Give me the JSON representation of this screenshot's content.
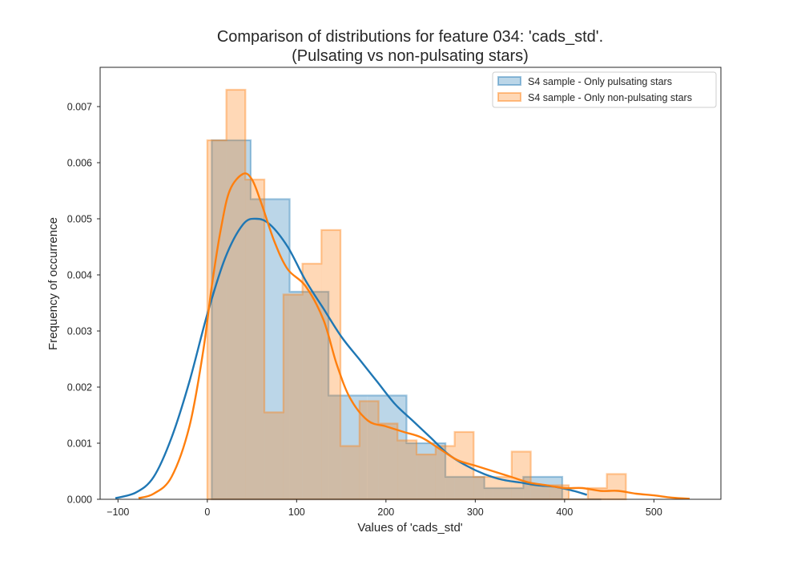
{
  "chart_data": {
    "type": "histogram",
    "title": "Comparison of distributions for feature 034: 'cads_std'.",
    "subtitle": "(Pulsating vs non-pulsating stars)",
    "xlabel": "Values of 'cads_std'",
    "ylabel": "Frequency of occurrence",
    "xlim": [
      -120,
      575
    ],
    "ylim": [
      0,
      0.0077
    ],
    "xticks": [
      -100,
      0,
      100,
      200,
      300,
      400,
      500
    ],
    "xtick_labels": [
      "−100",
      "0",
      "100",
      "200",
      "300",
      "400",
      "500"
    ],
    "yticks": [
      0,
      0.001,
      0.002,
      0.003,
      0.004,
      0.005,
      0.006,
      0.007
    ],
    "ytick_labels": [
      "0.000",
      "0.001",
      "0.002",
      "0.003",
      "0.004",
      "0.005",
      "0.006",
      "0.007"
    ],
    "grid": false,
    "legend_position": "top-right",
    "series": [
      {
        "name": "S4 sample - Only pulsating stars",
        "color": "#1f77b4",
        "bin_edges": [
          5,
          48.6,
          92.2,
          135.8,
          179.4,
          223,
          266.6,
          310.2,
          353.8,
          397.4,
          441
        ],
        "density": [
          0.0064,
          0.00535,
          0.0037,
          0.00185,
          0.00185,
          0.001,
          0.0004,
          0.0002,
          0.0004,
          0.0
        ],
        "kde_x": [
          -103,
          -80,
          -60,
          -40,
          -20,
          0,
          20,
          40,
          55,
          70,
          90,
          110,
          130,
          150,
          170,
          190,
          210,
          230,
          250,
          270,
          290,
          310,
          330,
          350,
          370,
          390,
          410,
          425
        ],
        "kde_y": [
          2e-05,
          0.00012,
          0.0004,
          0.0011,
          0.0021,
          0.0033,
          0.0043,
          0.0049,
          0.005,
          0.0049,
          0.0045,
          0.0039,
          0.0034,
          0.0029,
          0.0025,
          0.0021,
          0.0017,
          0.0014,
          0.0011,
          0.0008,
          0.0006,
          0.00045,
          0.00035,
          0.0003,
          0.00025,
          0.00022,
          0.00015,
          8e-05
        ]
      },
      {
        "name": "S4 sample - Only non-pulsating stars",
        "color": "#ff7f0e",
        "bin_edges": [
          0,
          21.3,
          42.6,
          63.9,
          85.2,
          106.5,
          127.8,
          149.1,
          170.4,
          191.7,
          213,
          234.3,
          255.6,
          276.9,
          298.2,
          319.5,
          340.8,
          362.1,
          383.4,
          404.7,
          426,
          447.3,
          468.6
        ],
        "density": [
          0.0064,
          0.0073,
          0.0057,
          0.00155,
          0.00365,
          0.0042,
          0.0048,
          0.00095,
          0.00175,
          0.00135,
          0.00105,
          0.0008,
          0.00095,
          0.0012,
          0.0004,
          0.0004,
          0.00085,
          0.00025,
          0.00025,
          0.0,
          0.0002,
          0.00045
        ],
        "kde_x": [
          -77,
          -60,
          -40,
          -20,
          -5,
          5,
          15,
          25,
          40,
          50,
          60,
          75,
          90,
          110,
          130,
          145,
          160,
          180,
          200,
          220,
          240,
          260,
          280,
          300,
          320,
          340,
          360,
          380,
          400,
          420,
          440,
          460,
          480,
          500,
          520,
          540
        ],
        "kde_y": [
          2e-05,
          0.0001,
          0.0004,
          0.0013,
          0.0026,
          0.0038,
          0.0048,
          0.0055,
          0.0058,
          0.0057,
          0.0053,
          0.0046,
          0.0041,
          0.0038,
          0.0032,
          0.0024,
          0.0018,
          0.0014,
          0.0013,
          0.0012,
          0.0011,
          0.0009,
          0.0007,
          0.0006,
          0.0005,
          0.0004,
          0.0003,
          0.00025,
          0.0002,
          0.0002,
          0.00015,
          0.00015,
          0.0001,
          7e-05,
          3e-05,
          1e-05
        ]
      }
    ]
  }
}
